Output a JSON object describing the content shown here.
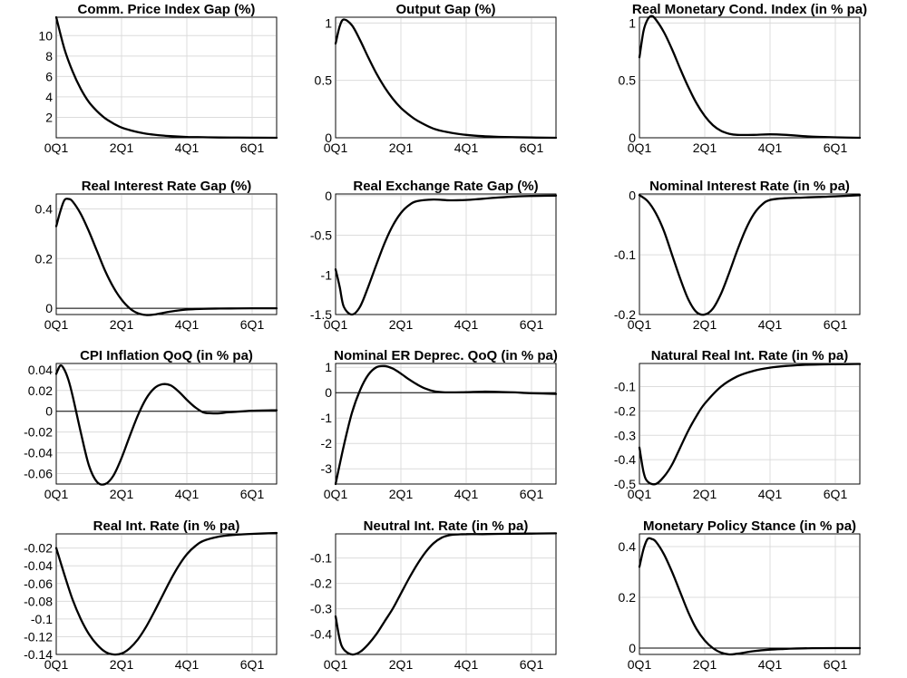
{
  "chart_data": [
    {
      "type": "line",
      "title": "Comm. Price Index Gap (%)",
      "xlabel": "",
      "ylabel": "",
      "x_ticks": [
        "0Q1",
        "2Q1",
        "4Q1",
        "6Q1"
      ],
      "xlim": [
        0,
        27
      ],
      "ylim": [
        0,
        11.8
      ],
      "y_ticks": [
        2,
        4,
        6,
        8,
        10
      ],
      "y_tick_labels": [
        "2",
        "4",
        "6",
        "8",
        "10"
      ],
      "grid": true,
      "zero_line": false,
      "x": [
        0,
        1,
        2,
        3,
        4,
        5,
        6,
        7,
        8,
        9,
        10,
        11,
        12,
        13,
        14,
        16,
        18,
        20,
        24,
        27
      ],
      "y": [
        11.8,
        8.7,
        6.5,
        4.8,
        3.5,
        2.6,
        1.9,
        1.4,
        1.0,
        0.75,
        0.55,
        0.4,
        0.3,
        0.22,
        0.16,
        0.08,
        0.05,
        0.03,
        0.01,
        0.0
      ]
    },
    {
      "type": "line",
      "title": "Output Gap (%)",
      "xlabel": "",
      "ylabel": "",
      "x_ticks": [
        "0Q1",
        "2Q1",
        "4Q1",
        "6Q1"
      ],
      "xlim": [
        0,
        27
      ],
      "ylim": [
        0,
        1.05
      ],
      "y_ticks": [
        0,
        0.5,
        1
      ],
      "y_tick_labels": [
        "0",
        "0.5",
        "1"
      ],
      "grid": true,
      "zero_line": false,
      "x": [
        0,
        0.5,
        1,
        2,
        3,
        4,
        5,
        6,
        7,
        8,
        9,
        10,
        12,
        14,
        16,
        18,
        20,
        24,
        27
      ],
      "y": [
        0.82,
        0.97,
        1.03,
        0.98,
        0.85,
        0.7,
        0.56,
        0.44,
        0.34,
        0.26,
        0.2,
        0.15,
        0.08,
        0.045,
        0.025,
        0.014,
        0.008,
        0.002,
        0.0
      ]
    },
    {
      "type": "line",
      "title": "Real Monetary Cond. Index (in % pa)",
      "xlabel": "",
      "ylabel": "",
      "x_ticks": [
        "0Q1",
        "2Q1",
        "4Q1",
        "6Q1"
      ],
      "xlim": [
        0,
        27
      ],
      "ylim": [
        0,
        1.05
      ],
      "y_ticks": [
        0,
        0.5,
        1
      ],
      "y_tick_labels": [
        "0",
        "0.5",
        "1"
      ],
      "grid": true,
      "zero_line": false,
      "x": [
        0,
        0.5,
        1,
        1.5,
        2,
        3,
        4,
        5,
        6,
        7,
        8,
        9,
        10,
        11,
        12,
        14,
        16,
        18,
        20,
        22,
        24,
        27
      ],
      "y": [
        0.7,
        0.93,
        1.03,
        1.06,
        1.03,
        0.92,
        0.77,
        0.6,
        0.44,
        0.3,
        0.19,
        0.11,
        0.06,
        0.035,
        0.025,
        0.025,
        0.03,
        0.025,
        0.015,
        0.008,
        0.004,
        0.0
      ]
    },
    {
      "type": "line",
      "title": "Real Interest Rate Gap (%)",
      "xlabel": "",
      "ylabel": "",
      "x_ticks": [
        "0Q1",
        "2Q1",
        "4Q1",
        "6Q1"
      ],
      "xlim": [
        0,
        27
      ],
      "ylim": [
        -0.025,
        0.46
      ],
      "y_ticks": [
        0,
        0.2,
        0.4
      ],
      "y_tick_labels": [
        "0",
        "0.2",
        "0.4"
      ],
      "grid": true,
      "zero_line": true,
      "x": [
        0,
        0.5,
        1,
        1.5,
        2,
        3,
        4,
        5,
        6,
        7,
        8,
        9,
        10,
        11,
        12,
        14,
        16,
        18,
        20,
        24,
        27
      ],
      "y": [
        0.33,
        0.39,
        0.435,
        0.44,
        0.43,
        0.38,
        0.31,
        0.23,
        0.15,
        0.085,
        0.035,
        0.0,
        -0.02,
        -0.027,
        -0.025,
        -0.013,
        -0.005,
        -0.002,
        -0.001,
        0.0,
        0.0
      ]
    },
    {
      "type": "line",
      "title": "Real Exchange Rate Gap (%)",
      "xlabel": "",
      "ylabel": "",
      "x_ticks": [
        "0Q1",
        "2Q1",
        "4Q1",
        "6Q1"
      ],
      "xlim": [
        0,
        27
      ],
      "ylim": [
        -1.5,
        0.02
      ],
      "y_ticks": [
        -1.5,
        -1,
        -0.5,
        0
      ],
      "y_tick_labels": [
        "-1.5",
        "-1",
        "-0.5",
        "0"
      ],
      "grid": true,
      "zero_line": false,
      "x": [
        0,
        0.5,
        1,
        2,
        3,
        4,
        5,
        6,
        7,
        8,
        9,
        10,
        12,
        14,
        16,
        18,
        20,
        22,
        24,
        27
      ],
      "y": [
        -0.93,
        -1.15,
        -1.4,
        -1.5,
        -1.4,
        -1.15,
        -0.87,
        -0.6,
        -0.38,
        -0.22,
        -0.12,
        -0.07,
        -0.05,
        -0.06,
        -0.055,
        -0.04,
        -0.025,
        -0.012,
        -0.005,
        0.0
      ]
    },
    {
      "type": "line",
      "title": "Nominal Interest Rate (in % pa)",
      "xlabel": "",
      "ylabel": "",
      "x_ticks": [
        "0Q1",
        "2Q1",
        "4Q1",
        "6Q1"
      ],
      "xlim": [
        0,
        27
      ],
      "ylim": [
        -0.2,
        0.002
      ],
      "y_ticks": [
        -0.2,
        -0.1,
        0
      ],
      "y_tick_labels": [
        "-0.2",
        "-0.1",
        "0"
      ],
      "grid": true,
      "zero_line": false,
      "x": [
        0,
        1,
        2,
        3,
        4,
        5,
        6,
        7,
        8,
        9,
        10,
        11,
        12,
        13,
        14,
        15,
        16,
        18,
        20,
        22,
        24,
        27
      ],
      "y": [
        0.0,
        -0.01,
        -0.03,
        -0.06,
        -0.1,
        -0.14,
        -0.175,
        -0.196,
        -0.2,
        -0.19,
        -0.165,
        -0.13,
        -0.092,
        -0.058,
        -0.032,
        -0.016,
        -0.008,
        -0.005,
        -0.004,
        -0.003,
        -0.002,
        0.0
      ]
    },
    {
      "type": "line",
      "title": "CPI Inflation QoQ (in % pa)",
      "xlabel": "",
      "ylabel": "",
      "x_ticks": [
        "0Q1",
        "2Q1",
        "4Q1",
        "6Q1"
      ],
      "xlim": [
        0,
        27
      ],
      "ylim": [
        -0.07,
        0.046
      ],
      "y_ticks": [
        -0.06,
        -0.04,
        -0.02,
        0,
        0.02,
        0.04
      ],
      "y_tick_labels": [
        "-0.06",
        "-0.04",
        "-0.02",
        "0",
        "0.02",
        "0.04"
      ],
      "grid": true,
      "zero_line": true,
      "x": [
        0,
        0.5,
        1,
        1.5,
        2,
        3,
        4,
        5,
        6,
        7,
        8,
        9,
        10,
        11,
        12,
        13,
        14,
        15,
        16,
        17,
        18,
        19,
        20,
        21,
        22,
        24,
        27
      ],
      "y": [
        0.036,
        0.044,
        0.04,
        0.03,
        0.015,
        -0.02,
        -0.052,
        -0.068,
        -0.07,
        -0.062,
        -0.045,
        -0.024,
        -0.004,
        0.012,
        0.022,
        0.026,
        0.025,
        0.019,
        0.011,
        0.004,
        -0.001,
        -0.002,
        -0.002,
        -0.001,
        -0.0005,
        0.0005,
        0.001
      ]
    },
    {
      "type": "line",
      "title": "Nominal ER Deprec. QoQ (in % pa)",
      "xlabel": "",
      "ylabel": "",
      "x_ticks": [
        "0Q1",
        "2Q1",
        "4Q1",
        "6Q1"
      ],
      "xlim": [
        0,
        27
      ],
      "ylim": [
        -3.6,
        1.15
      ],
      "y_ticks": [
        -3,
        -2,
        -1,
        0,
        1
      ],
      "y_tick_labels": [
        "-3",
        "-2",
        "-1",
        "0",
        "1"
      ],
      "grid": true,
      "zero_line": true,
      "x": [
        0,
        1,
        2,
        3,
        4,
        5,
        6,
        7,
        8,
        9,
        10,
        11,
        12,
        13,
        14,
        16,
        18,
        20,
        22,
        24,
        27
      ],
      "y": [
        -3.6,
        -2.1,
        -0.8,
        0.1,
        0.7,
        1.0,
        1.05,
        0.95,
        0.75,
        0.52,
        0.32,
        0.16,
        0.06,
        0.02,
        0.01,
        0.02,
        0.04,
        0.03,
        0.01,
        -0.02,
        -0.05
      ]
    },
    {
      "type": "line",
      "title": "Natural Real Int. Rate (in % pa)",
      "xlabel": "",
      "ylabel": "",
      "x_ticks": [
        "0Q1",
        "2Q1",
        "4Q1",
        "6Q1"
      ],
      "xlim": [
        0,
        27
      ],
      "ylim": [
        -0.5,
        -0.005
      ],
      "y_ticks": [
        -0.5,
        -0.4,
        -0.3,
        -0.2,
        -0.1
      ],
      "y_tick_labels": [
        "-0.5",
        "-0.4",
        "-0.3",
        "-0.2",
        "-0.1"
      ],
      "grid": true,
      "zero_line": false,
      "x": [
        0,
        0.5,
        1,
        2,
        3,
        4,
        5,
        6,
        7,
        8,
        10,
        12,
        14,
        16,
        18,
        20,
        22,
        24,
        27
      ],
      "y": [
        -0.35,
        -0.45,
        -0.49,
        -0.5,
        -0.47,
        -0.42,
        -0.35,
        -0.28,
        -0.22,
        -0.17,
        -0.1,
        -0.058,
        -0.035,
        -0.022,
        -0.015,
        -0.011,
        -0.009,
        -0.008,
        -0.007
      ]
    },
    {
      "type": "line",
      "title": "Real Int. Rate (in % pa)",
      "xlabel": "",
      "ylabel": "",
      "x_ticks": [
        "0Q1",
        "2Q1",
        "4Q1",
        "6Q1"
      ],
      "xlim": [
        0,
        27
      ],
      "ylim": [
        -0.14,
        -0.004
      ],
      "y_ticks": [
        -0.14,
        -0.12,
        -0.1,
        -0.08,
        -0.06,
        -0.04,
        -0.02
      ],
      "y_tick_labels": [
        "-0.14",
        "-0.12",
        "-0.1",
        "-0.08",
        "-0.06",
        "-0.04",
        "-0.02"
      ],
      "grid": true,
      "zero_line": false,
      "x": [
        0,
        1,
        2,
        3,
        4,
        5,
        6,
        7,
        8,
        9,
        10,
        11,
        12,
        13,
        14,
        15,
        16,
        17,
        18,
        20,
        22,
        24,
        27
      ],
      "y": [
        -0.02,
        -0.05,
        -0.078,
        -0.1,
        -0.117,
        -0.129,
        -0.137,
        -0.14,
        -0.139,
        -0.133,
        -0.123,
        -0.109,
        -0.092,
        -0.074,
        -0.056,
        -0.04,
        -0.027,
        -0.018,
        -0.012,
        -0.007,
        -0.005,
        -0.004,
        -0.003
      ]
    },
    {
      "type": "line",
      "title": "Neutral Int. Rate (in % pa)",
      "xlabel": "",
      "ylabel": "",
      "x_ticks": [
        "0Q1",
        "2Q1",
        "4Q1",
        "6Q1"
      ],
      "xlim": [
        0,
        27
      ],
      "ylim": [
        -0.48,
        -0.005
      ],
      "y_ticks": [
        -0.4,
        -0.3,
        -0.2,
        -0.1
      ],
      "y_tick_labels": [
        "-0.4",
        "-0.3",
        "-0.2",
        "-0.1"
      ],
      "grid": true,
      "zero_line": false,
      "x": [
        0,
        0.5,
        1,
        2,
        3,
        4,
        5,
        6,
        7,
        8,
        9,
        10,
        11,
        12,
        13,
        14,
        15,
        16,
        18,
        20,
        24,
        27
      ],
      "y": [
        -0.33,
        -0.42,
        -0.46,
        -0.48,
        -0.47,
        -0.44,
        -0.4,
        -0.35,
        -0.3,
        -0.24,
        -0.18,
        -0.125,
        -0.078,
        -0.042,
        -0.02,
        -0.01,
        -0.007,
        -0.006,
        -0.006,
        -0.005,
        -0.004,
        -0.003
      ]
    },
    {
      "type": "line",
      "title": "Monetary Policy Stance (in % pa)",
      "xlabel": "",
      "ylabel": "",
      "x_ticks": [
        "0Q1",
        "2Q1",
        "4Q1",
        "6Q1"
      ],
      "xlim": [
        0,
        27
      ],
      "ylim": [
        -0.025,
        0.45
      ],
      "y_ticks": [
        0,
        0.2,
        0.4
      ],
      "y_tick_labels": [
        "0",
        "0.2",
        "0.4"
      ],
      "grid": true,
      "zero_line": true,
      "x": [
        0,
        0.5,
        1,
        1.5,
        2,
        3,
        4,
        5,
        6,
        7,
        8,
        9,
        10,
        11,
        12,
        14,
        16,
        18,
        20,
        24,
        27
      ],
      "y": [
        0.32,
        0.39,
        0.43,
        0.43,
        0.42,
        0.37,
        0.3,
        0.22,
        0.14,
        0.075,
        0.03,
        0.0,
        -0.018,
        -0.025,
        -0.022,
        -0.012,
        -0.006,
        -0.003,
        -0.001,
        0.0,
        0.0
      ]
    }
  ]
}
